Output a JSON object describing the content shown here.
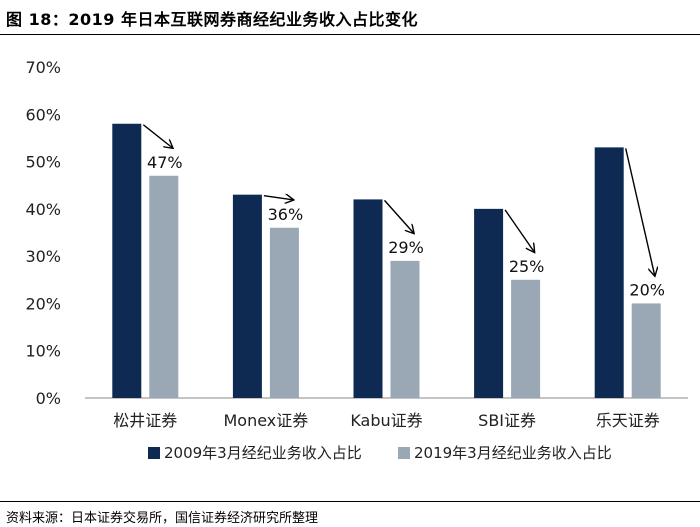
{
  "page": {
    "title": "图 18：2019 年日本互联网券商经纪业务收入占比变化",
    "source": "资料来源：日本证券交易所，国信证券经济研究所整理"
  },
  "chart_data": {
    "type": "bar",
    "categories": [
      "松井证券",
      "Monex证券",
      "Kabu证券",
      "SBI证券",
      "乐天证券"
    ],
    "series": [
      {
        "name": "2009年3月经纪业务收入占比",
        "values": [
          58,
          43,
          42,
          40,
          53
        ],
        "color": "#0e2a53"
      },
      {
        "name": "2019年3月经纪业务收入占比",
        "values": [
          47,
          36,
          29,
          25,
          20
        ],
        "color": "#9aa8b6"
      }
    ],
    "data_labels_series_index": 1,
    "data_labels": [
      "47%",
      "36%",
      "29%",
      "25%",
      "20%"
    ],
    "ylim": [
      0,
      70
    ],
    "yticks": [
      0,
      10,
      20,
      30,
      40,
      50,
      60,
      70
    ],
    "ytick_labels": [
      "0%",
      "10%",
      "20%",
      "30%",
      "40%",
      "50%",
      "60%",
      "70%"
    ],
    "xlabel": "",
    "ylabel": "",
    "grid": false,
    "legend_position": "bottom",
    "annotations": "arrows from each 2009 bar top to the 2019 bar top"
  }
}
